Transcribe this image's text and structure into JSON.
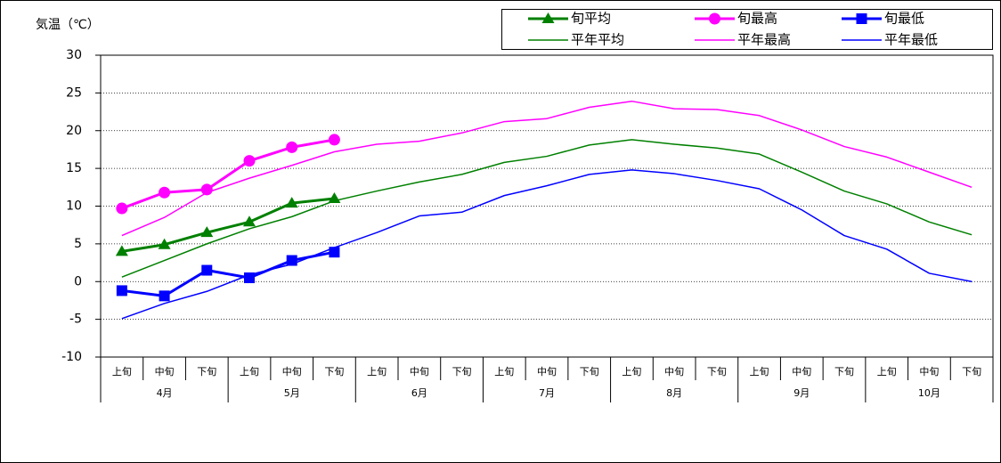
{
  "chart_data": {
    "type": "line",
    "y_label": "気温（℃）",
    "categories": [
      "上旬",
      "中旬",
      "下旬",
      "上旬",
      "中旬",
      "下旬",
      "上旬",
      "中旬",
      "下旬",
      "上旬",
      "中旬",
      "下旬",
      "上旬",
      "中旬",
      "下旬",
      "上旬",
      "中旬",
      "下旬",
      "上旬",
      "中旬",
      "下旬"
    ],
    "months": [
      "4月",
      "5月",
      "6月",
      "7月",
      "8月",
      "9月",
      "10月"
    ],
    "ylim": [
      -10,
      30
    ],
    "yticks": [
      -10,
      -5,
      0,
      5,
      10,
      15,
      20,
      25,
      30
    ],
    "grid": true,
    "series": [
      {
        "name": "旬平均",
        "color": "#008000",
        "marker": "triangle",
        "values": [
          4.0,
          4.9,
          6.5,
          7.9,
          10.4,
          11.0,
          null,
          null,
          null,
          null,
          null,
          null,
          null,
          null,
          null,
          null,
          null,
          null,
          null,
          null,
          null
        ]
      },
      {
        "name": "旬最高",
        "color": "#ff00ff",
        "marker": "circle",
        "values": [
          9.7,
          11.8,
          12.2,
          16.0,
          17.8,
          18.8,
          null,
          null,
          null,
          null,
          null,
          null,
          null,
          null,
          null,
          null,
          null,
          null,
          null,
          null,
          null
        ]
      },
      {
        "name": "旬最低",
        "color": "#0000ff",
        "marker": "square",
        "values": [
          -1.2,
          -1.9,
          1.5,
          0.5,
          2.8,
          3.9,
          null,
          null,
          null,
          null,
          null,
          null,
          null,
          null,
          null,
          null,
          null,
          null,
          null,
          null,
          null
        ]
      },
      {
        "name": "平年平均",
        "color": "#008000",
        "values": [
          0.6,
          2.8,
          5.0,
          7.0,
          8.6,
          10.7,
          12.0,
          13.2,
          14.2,
          15.8,
          16.6,
          18.1,
          18.8,
          18.2,
          17.7,
          16.9,
          14.5,
          12.0,
          10.3,
          7.9,
          6.2
        ]
      },
      {
        "name": "平年最高",
        "color": "#ff00ff",
        "values": [
          6.1,
          8.5,
          11.8,
          13.7,
          15.4,
          17.2,
          18.2,
          18.6,
          19.7,
          21.2,
          21.6,
          23.1,
          23.9,
          22.9,
          22.8,
          22.0,
          20.1,
          17.9,
          16.5,
          14.5,
          12.5
        ]
      },
      {
        "name": "平年最低",
        "color": "#0000ff",
        "values": [
          -4.9,
          -2.9,
          -1.3,
          0.9,
          2.3,
          4.5,
          6.5,
          8.7,
          9.2,
          11.4,
          12.7,
          14.2,
          14.8,
          14.3,
          13.4,
          12.3,
          9.5,
          6.1,
          4.3,
          1.1,
          0.0
        ]
      }
    ]
  }
}
